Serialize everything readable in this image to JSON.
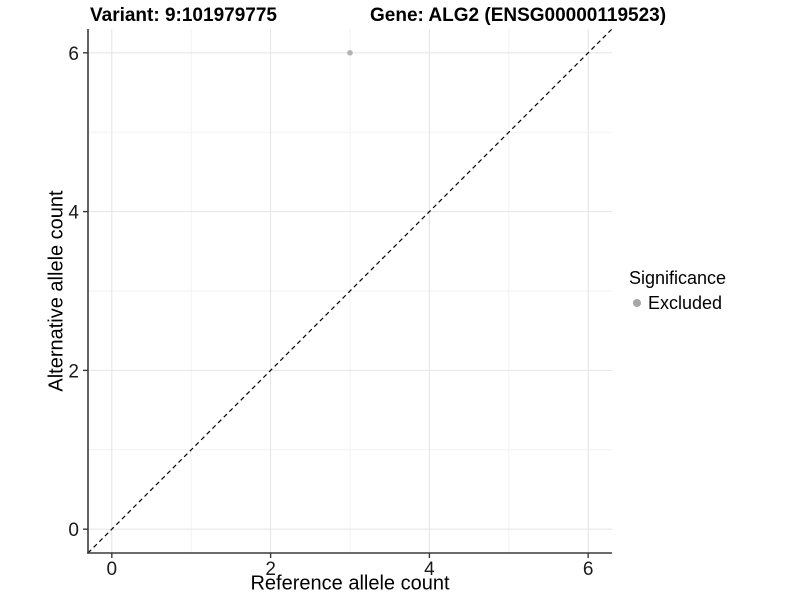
{
  "header": {
    "title_variant": "Variant: 9:101979775",
    "title_gene": "Gene: ALG2 (ENSG00000119523)"
  },
  "chart_data": {
    "type": "scatter",
    "title": "Variant: 9:101979775   Gene: ALG2 (ENSG00000119523)",
    "xlabel": "Reference allele count",
    "ylabel": "Alternative allele count",
    "xlim": [
      -0.3,
      6.3
    ],
    "ylim": [
      -0.3,
      6.3
    ],
    "x_ticks": [
      0,
      2,
      4,
      6
    ],
    "y_ticks": [
      0,
      2,
      4,
      6
    ],
    "x_minor_ticks": [
      1,
      3,
      5
    ],
    "y_minor_ticks": [
      1,
      3,
      5
    ],
    "grid": "major+minor",
    "series": [
      {
        "name": "Excluded",
        "color": "#b3b3b3",
        "points": [
          {
            "x": 3,
            "y": 6
          }
        ]
      }
    ],
    "reference_line": {
      "kind": "identity",
      "slope": 1,
      "intercept": 0,
      "linetype": "dashed",
      "color": "#000000"
    },
    "legend": {
      "title": "Significance",
      "position": "right",
      "items": [
        {
          "label": "Excluded",
          "color": "#a6a6a6"
        }
      ]
    }
  },
  "colors": {
    "background": "#ffffff",
    "grid_major": "#e4e4e4",
    "grid_minor": "#f2f2f2",
    "axis_line": "#3a3a3a",
    "tick_text": "#1a1a1a"
  }
}
